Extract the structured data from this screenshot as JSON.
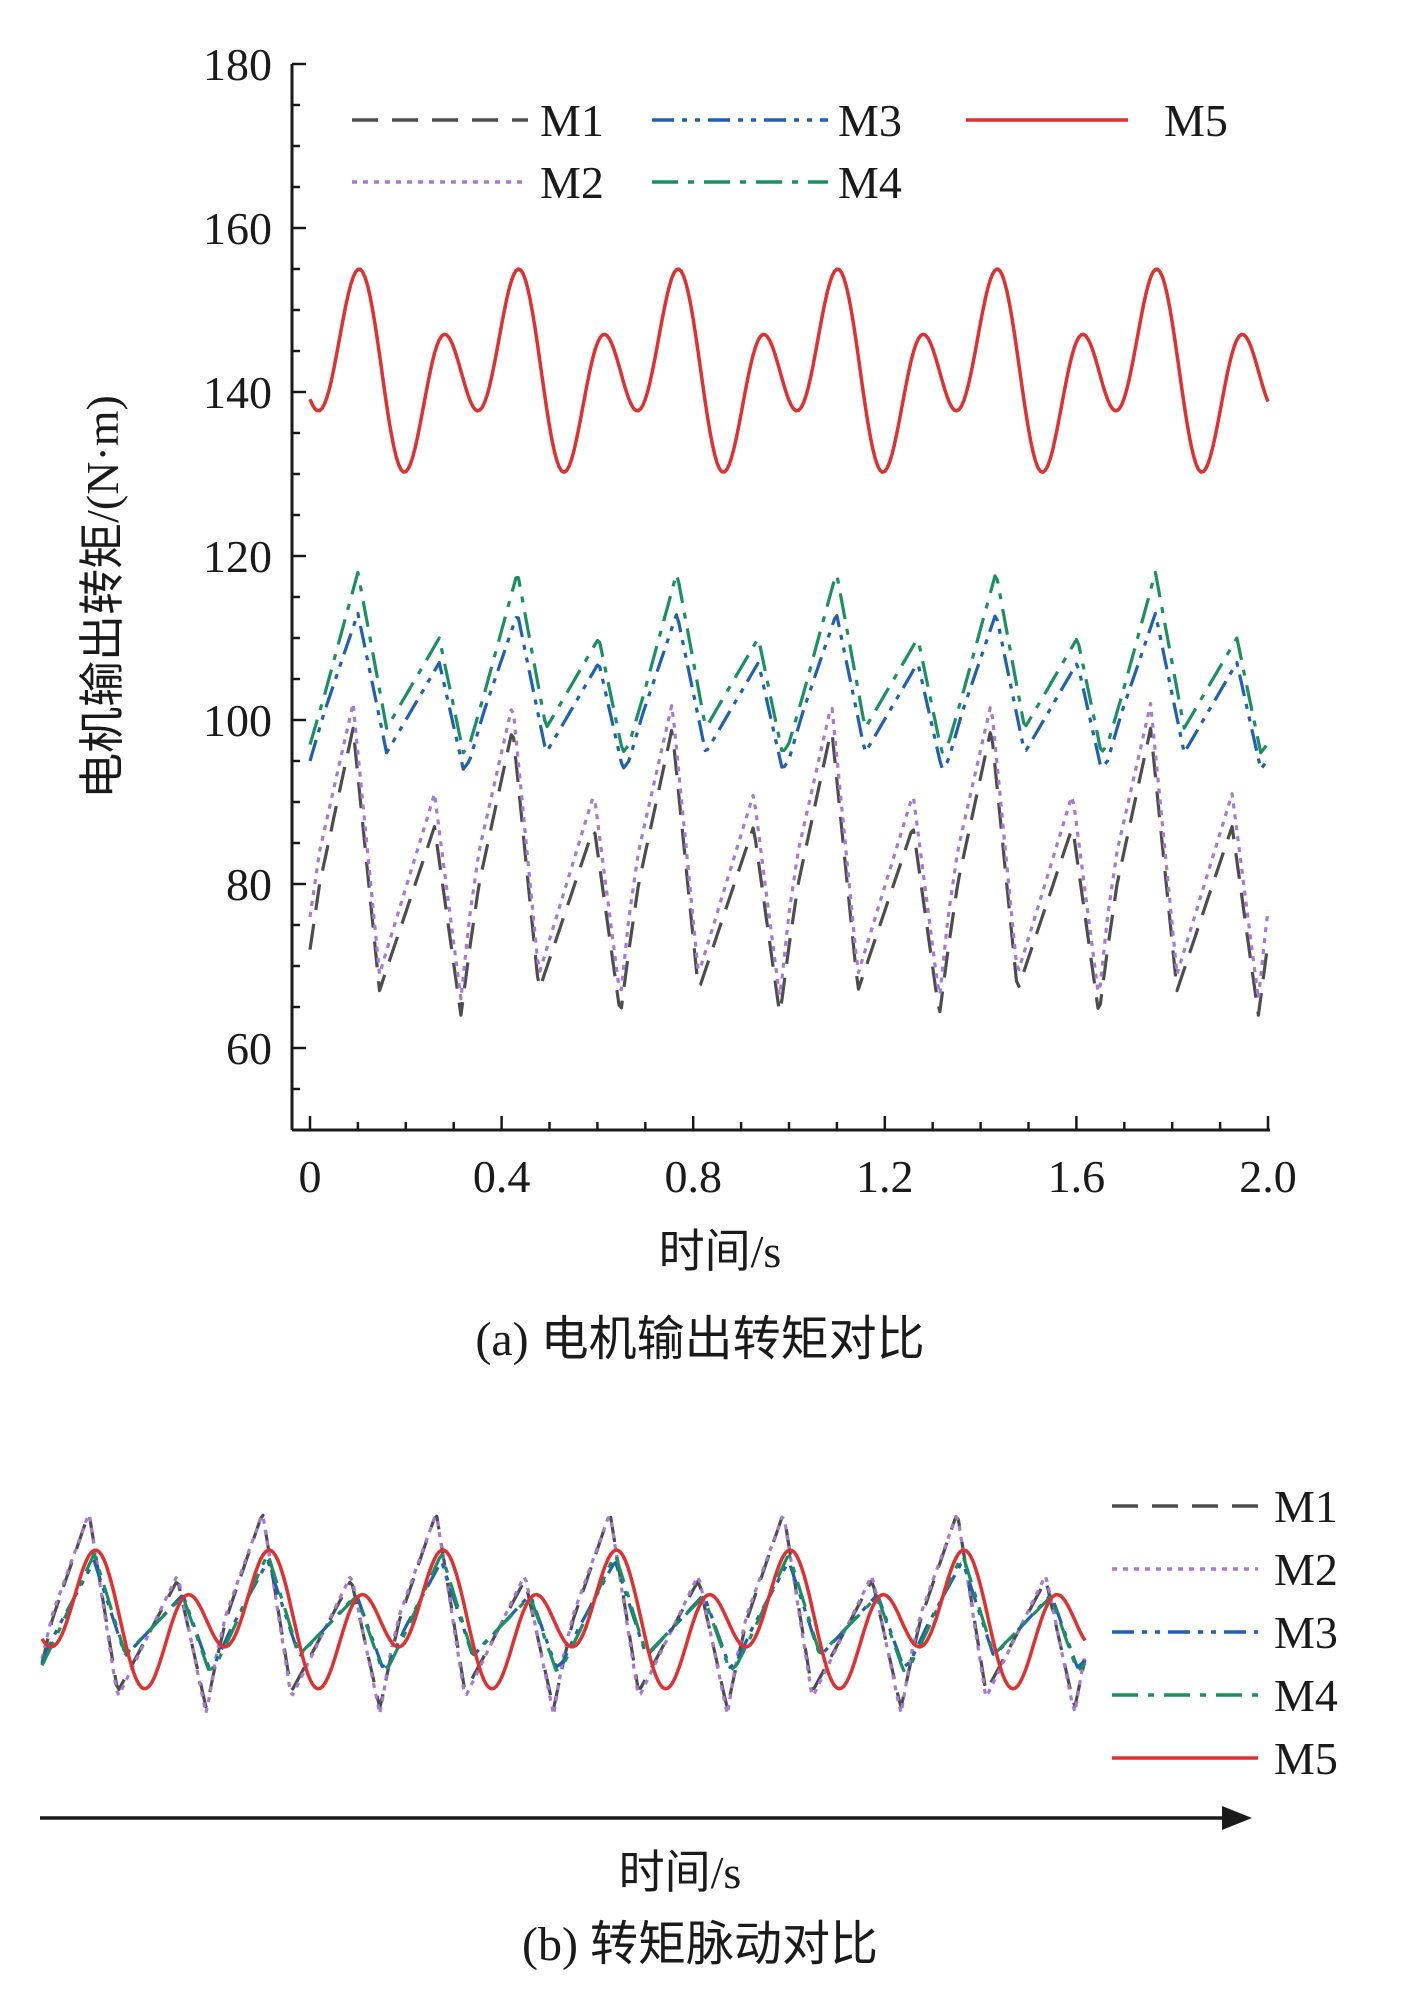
{
  "chart_data": [
    {
      "type": "line",
      "caption": "(a) 电机输出转矩对比",
      "xlabel": "时间/s",
      "ylabel": "电机输出转矩/(N·m)",
      "xlim": [
        0,
        2.0
      ],
      "ylim": [
        50,
        180
      ],
      "xticks": [
        "0",
        "0.4",
        "0.8",
        "1.2",
        "1.6",
        "2.0"
      ],
      "yticks": [
        "60",
        "80",
        "100",
        "120",
        "140",
        "160",
        "180"
      ],
      "grid": false,
      "legend": "top",
      "period_s": 0.333,
      "series": [
        {
          "name": "M1",
          "color": "#4d4d4d",
          "style": "dash",
          "x": [
            0,
            0.02,
            0.09,
            0.145,
            0.26,
            0.315,
            0.333
          ],
          "y": [
            72,
            80,
            99,
            67,
            87,
            64,
            72
          ]
        },
        {
          "name": "M2",
          "color": "#a47ad4",
          "style": "dot",
          "x": [
            0,
            0.02,
            0.09,
            0.145,
            0.26,
            0.315,
            0.333
          ],
          "y": [
            76,
            84,
            102,
            69,
            91,
            66,
            76
          ]
        },
        {
          "name": "M3",
          "color": "#1f5fb4",
          "style": "dashdotdot",
          "x": [
            0,
            0.03,
            0.1,
            0.16,
            0.27,
            0.32,
            0.333
          ],
          "y": [
            95,
            101,
            113,
            96,
            107,
            94,
            95
          ]
        },
        {
          "name": "M4",
          "color": "#1a9060",
          "style": "dashdot",
          "x": [
            0,
            0.03,
            0.1,
            0.16,
            0.27,
            0.32,
            0.333
          ],
          "y": [
            97,
            103,
            118,
            99,
            110,
            96,
            97
          ]
        },
        {
          "name": "M5",
          "color": "#e03030",
          "style": "solid",
          "mean": 142.5,
          "amp1": 5.5,
          "amp2": 8.3,
          "phase1_s": 0.068,
          "phase2_s": 0.108,
          "max": 156,
          "min": 135,
          "secondary_max": 145.5
        }
      ]
    },
    {
      "type": "line",
      "caption": "(b) 转矩脉动对比",
      "xlabel": "时间/s",
      "legend": "right",
      "series_names": [
        "M1",
        "M2",
        "M3",
        "M4",
        "M5"
      ]
    }
  ]
}
